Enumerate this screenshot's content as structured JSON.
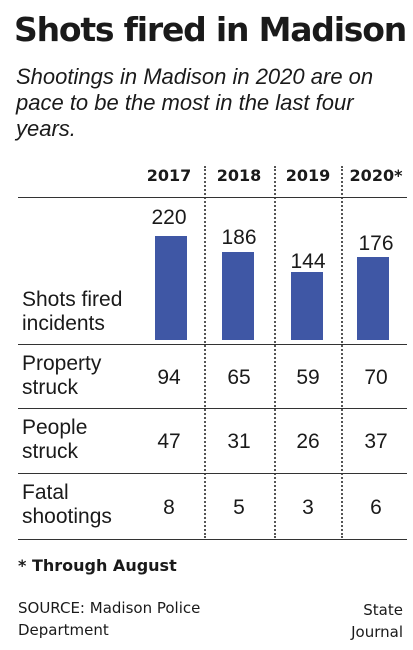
{
  "title": "Shots fired in Madison",
  "subtitle": "Shootings in Madison in 2020 are on pace to be the most in the last four years.",
  "chart_data": {
    "type": "bar",
    "categories": [
      "2017",
      "2018",
      "2019",
      "2020*"
    ],
    "series": [
      {
        "name": "Shots fired incidents",
        "values": [
          220,
          186,
          144,
          176
        ]
      }
    ],
    "table_rows": [
      {
        "label": "Property struck",
        "values": [
          94,
          65,
          59,
          70
        ]
      },
      {
        "label": "People struck",
        "values": [
          47,
          31,
          26,
          37
        ]
      },
      {
        "label": "Fatal shootings",
        "values": [
          8,
          5,
          3,
          6
        ]
      }
    ],
    "bar_color": "#3f57a5"
  },
  "labels": {
    "shots_line1": "Shots fired",
    "shots_line2": "incidents",
    "rows": [
      [
        "Property",
        "struck"
      ],
      [
        "People",
        "struck"
      ],
      [
        "Fatal",
        "shootings"
      ]
    ]
  },
  "footnote": "* Through August",
  "source_line1": "SOURCE: Madison Police",
  "source_line2": "Department",
  "credit_line1": "State",
  "credit_line2": "Journal"
}
